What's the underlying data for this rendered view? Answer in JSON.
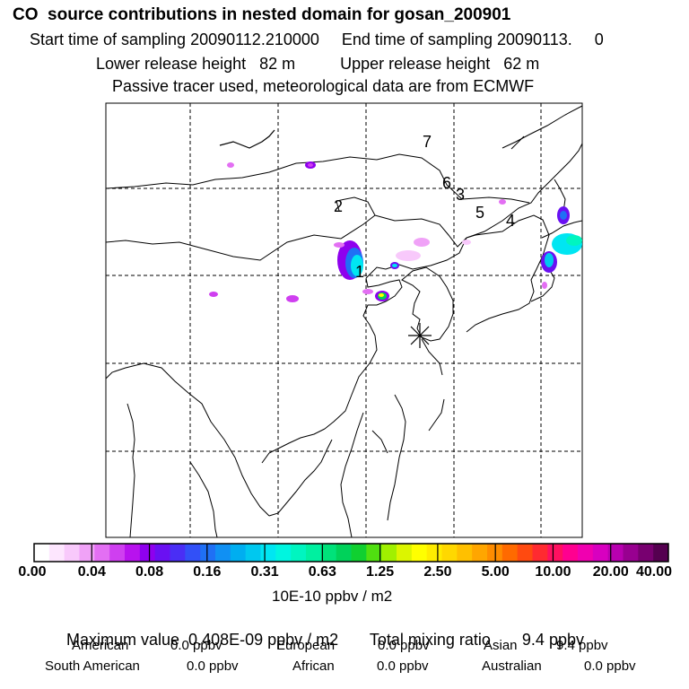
{
  "header": {
    "title": "CO  source contributions in nested domain for gosan_200901",
    "line1": "Start time of sampling 20090112.210000     End time of sampling 20090113.     0",
    "line2": "Lower release height   82 m          Upper release height   62 m",
    "line3": "Passive tracer used, meteorological data are from ECMWF"
  },
  "map": {
    "region_labels": [
      "7",
      "6",
      "3",
      "5",
      "4",
      "2",
      "1"
    ],
    "receptor_symbol": "asterisk"
  },
  "colorbar": {
    "tick_labels": [
      "0.00",
      "0.04",
      "0.08",
      "0.16",
      "0.31",
      "0.63",
      "1.25",
      "2.50",
      "5.00",
      "10.00",
      "20.00",
      "40.00"
    ],
    "units": "10E-10 ppbv / m2",
    "colors": [
      "#ffffff",
      "#fde6fe",
      "#f8c9fb",
      "#f0a2f7",
      "#e36ff3",
      "#cf3ff0",
      "#b812ee",
      "#8f00ee",
      "#6a10f2",
      "#4a2ef5",
      "#3250f7",
      "#1f70f5",
      "#1090f3",
      "#00aef0",
      "#00c8ef",
      "#00e6f2",
      "#00f5e0",
      "#00f5c0",
      "#00f0a0",
      "#00e27a",
      "#00d25a",
      "#10d030",
      "#50e010",
      "#a0f000",
      "#dcf500",
      "#ffff00",
      "#ffec00",
      "#ffd800",
      "#ffc000",
      "#ffa600",
      "#ff8c00",
      "#ff6a00",
      "#ff4a10",
      "#ff2a30",
      "#ff1060",
      "#ff0090",
      "#f000b0",
      "#d800c0",
      "#b800b0",
      "#980090",
      "#780070",
      "#550050"
    ]
  },
  "summary": {
    "max_label": "Maximum value  0.408E-09 ppbv / m2",
    "total_label": "Total mixing ratio       9.4 ppbv",
    "american_label": "American",
    "american_value": "0.0 ppbv",
    "european_label": "European",
    "european_value": "0.0 ppbv",
    "asian_label": "Asian",
    "asian_value": "9.4 ppbv",
    "south_american_label": "South American",
    "south_american_value": "0.0 ppbv",
    "african_label": "African",
    "african_value": "0.0 ppbv",
    "australian_label": "Australian",
    "australian_value": "0.0 ppbv"
  }
}
